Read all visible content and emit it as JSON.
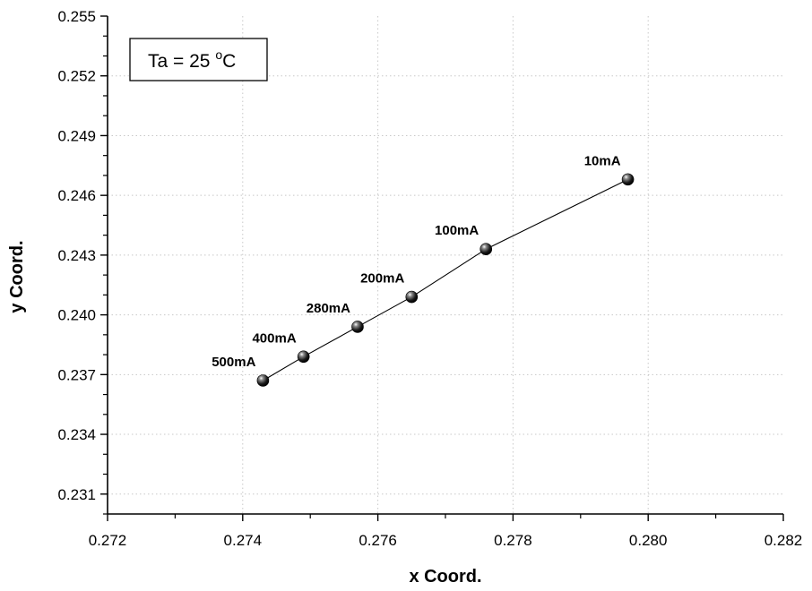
{
  "chart_data": {
    "type": "scatter",
    "xlabel": "x Coord.",
    "ylabel": "y Coord.",
    "xlim": [
      0.272,
      0.282
    ],
    "ylim": [
      0.23,
      0.255
    ],
    "x_ticks": [
      "0.272",
      "0.274",
      "0.276",
      "0.278",
      "0.280",
      "0.282"
    ],
    "y_ticks": [
      "0.231",
      "0.234",
      "0.237",
      "0.240",
      "0.243",
      "0.246",
      "0.249",
      "0.252",
      "0.255"
    ],
    "grid": true,
    "connect_points": true,
    "legend_box": {
      "text": "Ta = 25 ",
      "superscript": "o",
      "unit": "C",
      "position": "top-left"
    },
    "points": [
      {
        "label": "500mA",
        "x": 0.2743,
        "y": 0.2367
      },
      {
        "label": "400mA",
        "x": 0.2749,
        "y": 0.2379
      },
      {
        "label": "280mA",
        "x": 0.2757,
        "y": 0.2394
      },
      {
        "label": "200mA",
        "x": 0.2765,
        "y": 0.2409
      },
      {
        "label": "100mA",
        "x": 0.2776,
        "y": 0.2433
      },
      {
        "label": "10mA",
        "x": 0.2797,
        "y": 0.2468
      }
    ]
  }
}
